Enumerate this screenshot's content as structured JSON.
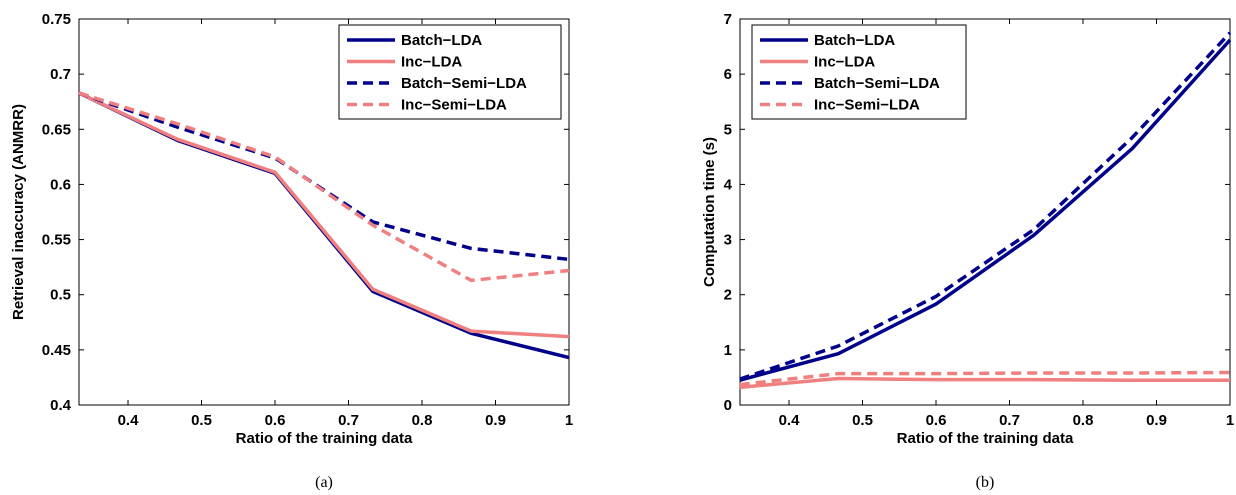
{
  "colors": {
    "batch": "#00008b",
    "inc": "#f08080",
    "axis": "#000000"
  },
  "panels": [
    {
      "caption": "(a)",
      "xlabel": "Ratio of the training data",
      "ylabel": "Retrieval inaccuracy (ANMRR)",
      "xlim": [
        0.3333,
        1.0
      ],
      "ylim": [
        0.4,
        0.75
      ],
      "xticks": [
        0.4,
        0.5,
        0.6,
        0.7,
        0.8,
        0.9,
        1.0
      ],
      "xtick_labels": [
        "0.4",
        "0.5",
        "0.6",
        "0.7",
        "0.8",
        "0.9",
        "1"
      ],
      "yticks": [
        0.4,
        0.45,
        0.5,
        0.55,
        0.6,
        0.65,
        0.7,
        0.75
      ],
      "ytick_labels": [
        "0.4",
        "0.45",
        "0.5",
        "0.55",
        "0.6",
        "0.65",
        "0.7",
        "0.75"
      ]
    },
    {
      "caption": "(b)",
      "xlabel": "Ratio of the training data",
      "ylabel": "Computation time (s)",
      "xlim": [
        0.3333,
        1.0
      ],
      "ylim": [
        0,
        7
      ],
      "xticks": [
        0.4,
        0.5,
        0.6,
        0.7,
        0.8,
        0.9,
        1.0
      ],
      "xtick_labels": [
        "0.4",
        "0.5",
        "0.6",
        "0.7",
        "0.8",
        "0.9",
        "1"
      ],
      "yticks": [
        0,
        1,
        2,
        3,
        4,
        5,
        6,
        7
      ],
      "ytick_labels": [
        "0",
        "1",
        "2",
        "3",
        "4",
        "5",
        "6",
        "7"
      ]
    }
  ],
  "chart_data": [
    {
      "type": "line",
      "title": "",
      "xlabel": "Ratio of the training data",
      "ylabel": "Retrieval inaccuracy (ANMRR)",
      "xlim": [
        0.3333,
        1.0
      ],
      "ylim": [
        0.4,
        0.75
      ],
      "grid": false,
      "legend": "top-right",
      "x": [
        0.333,
        0.467,
        0.6,
        0.733,
        0.867,
        1.0
      ],
      "series": [
        {
          "name": "Batch−LDA",
          "color_key": "batch",
          "dash": "solid",
          "values": [
            0.683,
            0.64,
            0.61,
            0.503,
            0.465,
            0.443
          ]
        },
        {
          "name": "Inc−LDA",
          "color_key": "inc",
          "dash": "solid",
          "values": [
            0.683,
            0.641,
            0.611,
            0.505,
            0.467,
            0.462
          ]
        },
        {
          "name": "Batch−Semi−LDA",
          "color_key": "batch",
          "dash": "dashed",
          "values": [
            0.683,
            0.652,
            0.624,
            0.566,
            0.542,
            0.532
          ]
        },
        {
          "name": "Inc−Semi−LDA",
          "color_key": "inc",
          "dash": "dashed",
          "values": [
            0.683,
            0.655,
            0.625,
            0.563,
            0.513,
            0.522
          ]
        }
      ]
    },
    {
      "type": "line",
      "title": "",
      "xlabel": "Ratio of the training data",
      "ylabel": "Computation time (s)",
      "xlim": [
        0.3333,
        1.0
      ],
      "ylim": [
        0,
        7
      ],
      "grid": false,
      "legend": "top-left",
      "x": [
        0.333,
        0.467,
        0.6,
        0.733,
        0.867,
        1.0
      ],
      "series": [
        {
          "name": "Batch−LDA",
          "color_key": "batch",
          "dash": "solid",
          "values": [
            0.45,
            0.93,
            1.83,
            3.08,
            4.65,
            6.62
          ]
        },
        {
          "name": "Inc−LDA",
          "color_key": "inc",
          "dash": "solid",
          "values": [
            0.32,
            0.48,
            0.46,
            0.46,
            0.45,
            0.45
          ]
        },
        {
          "name": "Batch−Semi−LDA",
          "color_key": "batch",
          "dash": "dashed",
          "values": [
            0.47,
            1.07,
            1.97,
            3.18,
            4.85,
            6.75
          ]
        },
        {
          "name": "Inc−Semi−LDA",
          "color_key": "inc",
          "dash": "dashed",
          "values": [
            0.37,
            0.57,
            0.57,
            0.58,
            0.58,
            0.59
          ]
        }
      ]
    }
  ]
}
